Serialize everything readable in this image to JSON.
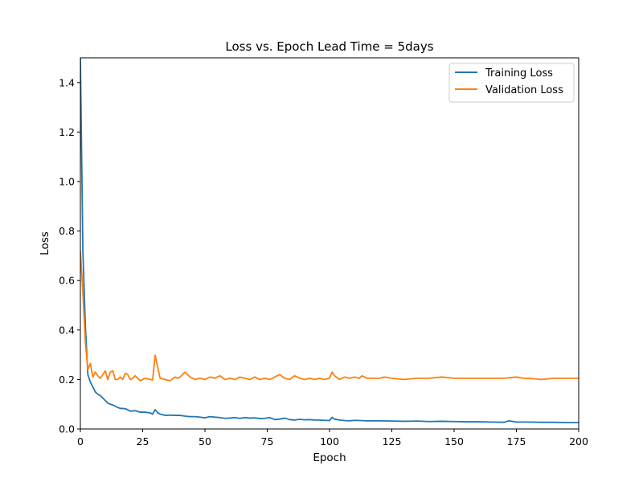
{
  "chart_data": {
    "type": "line",
    "title": "Loss vs. Epoch   Lead Time = 5days",
    "xlabel": "Epoch",
    "ylabel": "Loss",
    "xlim": [
      0,
      200
    ],
    "ylim": [
      0,
      1.5
    ],
    "xticks": [
      0,
      25,
      50,
      75,
      100,
      125,
      150,
      175,
      200
    ],
    "xtick_labels": [
      "0",
      "25",
      "50",
      "75",
      "100",
      "125",
      "150",
      "175",
      "200"
    ],
    "yticks": [
      0,
      0.2,
      0.4,
      0.6,
      0.8,
      1.0,
      1.2,
      1.4
    ],
    "ytick_labels": [
      "0.0",
      "0.2",
      "0.4",
      "0.6",
      "0.8",
      "1.0",
      "1.2",
      "1.4"
    ],
    "grid": false,
    "legend_position": "top-right",
    "series": [
      {
        "name": "Training Loss",
        "color": "#1f77b4",
        "x": [
          0,
          1,
          2,
          3,
          4,
          5,
          6,
          7,
          8,
          9,
          10,
          11,
          12,
          13,
          14,
          15,
          16,
          17,
          18,
          19,
          20,
          22,
          24,
          26,
          28,
          29,
          30,
          31,
          32,
          34,
          36,
          38,
          40,
          42,
          44,
          46,
          48,
          50,
          52,
          54,
          56,
          58,
          60,
          62,
          64,
          66,
          68,
          70,
          72,
          74,
          76,
          78,
          80,
          82,
          84,
          86,
          88,
          90,
          92,
          94,
          96,
          98,
          100,
          101,
          102,
          104,
          106,
          108,
          110,
          115,
          120,
          125,
          130,
          135,
          140,
          145,
          150,
          155,
          160,
          165,
          170,
          172,
          175,
          180,
          185,
          190,
          195,
          200
        ],
        "values": [
          1.5,
          0.72,
          0.42,
          0.22,
          0.19,
          0.17,
          0.15,
          0.14,
          0.135,
          0.125,
          0.115,
          0.105,
          0.1,
          0.097,
          0.092,
          0.087,
          0.083,
          0.083,
          0.082,
          0.078,
          0.072,
          0.074,
          0.068,
          0.068,
          0.065,
          0.06,
          0.078,
          0.066,
          0.06,
          0.055,
          0.056,
          0.055,
          0.055,
          0.052,
          0.05,
          0.05,
          0.048,
          0.045,
          0.05,
          0.048,
          0.046,
          0.043,
          0.044,
          0.046,
          0.043,
          0.046,
          0.044,
          0.045,
          0.042,
          0.043,
          0.046,
          0.038,
          0.04,
          0.044,
          0.038,
          0.036,
          0.039,
          0.037,
          0.038,
          0.036,
          0.036,
          0.035,
          0.034,
          0.047,
          0.04,
          0.036,
          0.034,
          0.033,
          0.035,
          0.033,
          0.033,
          0.032,
          0.031,
          0.032,
          0.03,
          0.031,
          0.03,
          0.029,
          0.029,
          0.028,
          0.027,
          0.033,
          0.028,
          0.028,
          0.027,
          0.027,
          0.026,
          0.026
        ]
      },
      {
        "name": "Validation Loss",
        "color": "#ff7f0e",
        "x": [
          0,
          1,
          2,
          3,
          4,
          5,
          6,
          7,
          8,
          9,
          10,
          11,
          12,
          13,
          14,
          15,
          16,
          17,
          18,
          19,
          20,
          21,
          22,
          24,
          26,
          28,
          29,
          30,
          31,
          32,
          34,
          36,
          38,
          39,
          40,
          42,
          44,
          46,
          48,
          50,
          52,
          54,
          56,
          58,
          60,
          62,
          64,
          66,
          68,
          70,
          72,
          74,
          76,
          78,
          80,
          82,
          84,
          86,
          88,
          90,
          92,
          94,
          96,
          98,
          100,
          101,
          102,
          104,
          106,
          108,
          110,
          112,
          113,
          115,
          120,
          122,
          125,
          130,
          135,
          140,
          145,
          150,
          155,
          160,
          165,
          170,
          175,
          178,
          180,
          185,
          190,
          195,
          200
        ],
        "values": [
          0.72,
          0.55,
          0.35,
          0.24,
          0.265,
          0.21,
          0.23,
          0.215,
          0.205,
          0.22,
          0.235,
          0.2,
          0.23,
          0.235,
          0.2,
          0.2,
          0.21,
          0.2,
          0.225,
          0.22,
          0.2,
          0.205,
          0.215,
          0.195,
          0.205,
          0.2,
          0.198,
          0.298,
          0.25,
          0.205,
          0.2,
          0.195,
          0.21,
          0.205,
          0.21,
          0.23,
          0.21,
          0.2,
          0.205,
          0.2,
          0.21,
          0.205,
          0.215,
          0.2,
          0.205,
          0.2,
          0.21,
          0.205,
          0.2,
          0.21,
          0.2,
          0.205,
          0.2,
          0.21,
          0.22,
          0.205,
          0.2,
          0.215,
          0.205,
          0.2,
          0.205,
          0.2,
          0.205,
          0.2,
          0.205,
          0.23,
          0.215,
          0.2,
          0.21,
          0.205,
          0.21,
          0.205,
          0.215,
          0.205,
          0.205,
          0.21,
          0.205,
          0.2,
          0.205,
          0.205,
          0.21,
          0.205,
          0.205,
          0.205,
          0.205,
          0.205,
          0.21,
          0.205,
          0.205,
          0.2,
          0.205,
          0.205,
          0.205
        ]
      }
    ]
  }
}
